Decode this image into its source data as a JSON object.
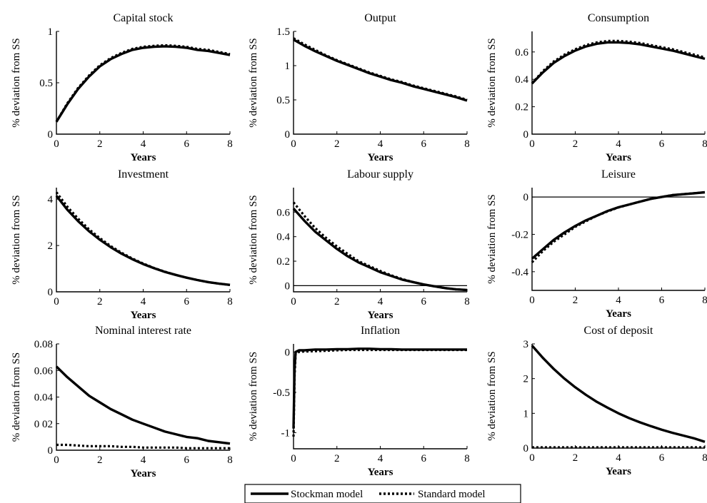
{
  "legend": {
    "entries": [
      {
        "label": "Stockman model",
        "style": "solid"
      },
      {
        "label": "Standard model",
        "style": "dotted"
      }
    ]
  },
  "chart_data": [
    {
      "type": "line",
      "title": "Capital stock",
      "xlabel": "Years",
      "ylabel": "% deviation from SS",
      "xlim": [
        0,
        8
      ],
      "ylim": [
        0,
        1
      ],
      "xticks": [
        0,
        2,
        4,
        6,
        8
      ],
      "yticks": [
        0,
        0.5,
        1
      ],
      "ytick_labels": [
        "0",
        "0.5",
        "1"
      ],
      "zero_line": false,
      "x": [
        0,
        0.5,
        1,
        1.5,
        2,
        2.5,
        3,
        3.5,
        4,
        4.5,
        5,
        5.5,
        6,
        6.5,
        7,
        7.5,
        8
      ],
      "series": [
        {
          "name": "Stockman model",
          "values": [
            0.12,
            0.29,
            0.44,
            0.56,
            0.66,
            0.73,
            0.78,
            0.82,
            0.84,
            0.85,
            0.855,
            0.85,
            0.84,
            0.82,
            0.81,
            0.79,
            0.77
          ]
        },
        {
          "name": "Standard model",
          "values": [
            0.12,
            0.3,
            0.45,
            0.57,
            0.67,
            0.74,
            0.79,
            0.83,
            0.85,
            0.86,
            0.865,
            0.86,
            0.85,
            0.83,
            0.82,
            0.8,
            0.78
          ]
        }
      ]
    },
    {
      "type": "line",
      "title": "Output",
      "xlabel": "Years",
      "ylabel": "% deviation from SS",
      "xlim": [
        0,
        8
      ],
      "ylim": [
        0,
        1.5
      ],
      "xticks": [
        0,
        2,
        4,
        6,
        8
      ],
      "yticks": [
        0,
        0.5,
        1,
        1.5
      ],
      "ytick_labels": [
        "0",
        "0.5",
        "1",
        "1.5"
      ],
      "zero_line": false,
      "x": [
        0,
        0.5,
        1,
        1.5,
        2,
        2.5,
        3,
        3.5,
        4,
        4.5,
        5,
        5.5,
        6,
        6.5,
        7,
        7.5,
        8
      ],
      "series": [
        {
          "name": "Stockman model",
          "values": [
            1.38,
            1.29,
            1.21,
            1.14,
            1.07,
            1.01,
            0.95,
            0.89,
            0.84,
            0.79,
            0.75,
            0.7,
            0.66,
            0.62,
            0.58,
            0.54,
            0.49
          ]
        },
        {
          "name": "Standard model",
          "values": [
            1.4,
            1.31,
            1.23,
            1.15,
            1.08,
            1.02,
            0.96,
            0.9,
            0.85,
            0.8,
            0.76,
            0.71,
            0.67,
            0.63,
            0.59,
            0.55,
            0.5
          ]
        }
      ]
    },
    {
      "type": "line",
      "title": "Consumption",
      "xlabel": "Years",
      "ylabel": "% deviation from SS",
      "xlim": [
        0,
        8
      ],
      "ylim": [
        0,
        0.75
      ],
      "xticks": [
        0,
        2,
        4,
        6,
        8
      ],
      "yticks": [
        0,
        0.2,
        0.4,
        0.6
      ],
      "ytick_labels": [
        "0",
        "0.2",
        "0.4",
        "0.6"
      ],
      "zero_line": false,
      "x": [
        0,
        0.5,
        1,
        1.5,
        2,
        2.5,
        3,
        3.5,
        4,
        4.5,
        5,
        5.5,
        6,
        6.5,
        7,
        7.5,
        8
      ],
      "series": [
        {
          "name": "Stockman model",
          "values": [
            0.37,
            0.45,
            0.52,
            0.57,
            0.61,
            0.64,
            0.66,
            0.67,
            0.67,
            0.665,
            0.655,
            0.64,
            0.625,
            0.61,
            0.59,
            0.57,
            0.55
          ]
        },
        {
          "name": "Standard model",
          "values": [
            0.37,
            0.46,
            0.53,
            0.58,
            0.62,
            0.65,
            0.67,
            0.68,
            0.68,
            0.675,
            0.665,
            0.65,
            0.635,
            0.62,
            0.6,
            0.58,
            0.56
          ]
        }
      ]
    },
    {
      "type": "line",
      "title": "Investment",
      "xlabel": "Years",
      "ylabel": "% deviation from SS",
      "xlim": [
        0,
        8
      ],
      "ylim": [
        0,
        4.5
      ],
      "xticks": [
        0,
        2,
        4,
        6,
        8
      ],
      "yticks": [
        0,
        2,
        4
      ],
      "ytick_labels": [
        "0",
        "2",
        "4"
      ],
      "zero_line": false,
      "x": [
        0,
        0.5,
        1,
        1.5,
        2,
        2.5,
        3,
        3.5,
        4,
        4.5,
        5,
        5.5,
        6,
        6.5,
        7,
        7.5,
        8
      ],
      "series": [
        {
          "name": "Stockman model",
          "values": [
            4.15,
            3.55,
            3.05,
            2.62,
            2.25,
            1.93,
            1.65,
            1.41,
            1.2,
            1.02,
            0.86,
            0.73,
            0.61,
            0.51,
            0.42,
            0.35,
            0.3
          ]
        },
        {
          "name": "Standard model",
          "values": [
            4.3,
            3.68,
            3.16,
            2.7,
            2.32,
            1.98,
            1.69,
            1.44,
            1.22,
            1.03,
            0.87,
            0.73,
            0.61,
            0.51,
            0.42,
            0.35,
            0.3
          ]
        }
      ]
    },
    {
      "type": "line",
      "title": "Labour supply",
      "xlabel": "Years",
      "ylabel": "% deviation from SS",
      "xlim": [
        0,
        8
      ],
      "ylim": [
        -0.05,
        0.8
      ],
      "xticks": [
        0,
        2,
        4,
        6,
        8
      ],
      "yticks": [
        0,
        0.2,
        0.4,
        0.6
      ],
      "ytick_labels": [
        "0",
        "0.2",
        "0.4",
        "0.6"
      ],
      "zero_line": true,
      "x": [
        0,
        0.5,
        1,
        1.5,
        2,
        2.5,
        3,
        3.5,
        4,
        4.5,
        5,
        5.5,
        6,
        6.5,
        7,
        7.5,
        8
      ],
      "series": [
        {
          "name": "Stockman model",
          "values": [
            0.63,
            0.53,
            0.44,
            0.37,
            0.3,
            0.24,
            0.19,
            0.15,
            0.11,
            0.08,
            0.05,
            0.03,
            0.01,
            -0.005,
            -0.02,
            -0.03,
            -0.035
          ]
        },
        {
          "name": "Standard model",
          "values": [
            0.68,
            0.57,
            0.47,
            0.39,
            0.32,
            0.26,
            0.2,
            0.16,
            0.12,
            0.085,
            0.055,
            0.03,
            0.01,
            -0.005,
            -0.02,
            -0.03,
            -0.035
          ]
        }
      ]
    },
    {
      "type": "line",
      "title": "Leisure",
      "xlabel": "Years",
      "ylabel": "% deviation from SS",
      "xlim": [
        0,
        8
      ],
      "ylim": [
        -0.5,
        0.05
      ],
      "xticks": [
        0,
        2,
        4,
        6,
        8
      ],
      "yticks": [
        -0.4,
        -0.2,
        0
      ],
      "ytick_labels": [
        "-0.4",
        "-0.2",
        "0"
      ],
      "zero_line": true,
      "x": [
        0,
        0.5,
        1,
        1.5,
        2,
        2.5,
        3,
        3.5,
        4,
        4.5,
        5,
        5.5,
        6,
        6.5,
        7,
        7.5,
        8
      ],
      "series": [
        {
          "name": "Stockman model",
          "values": [
            -0.33,
            -0.28,
            -0.23,
            -0.19,
            -0.155,
            -0.125,
            -0.1,
            -0.075,
            -0.055,
            -0.04,
            -0.025,
            -0.01,
            0.0,
            0.01,
            0.015,
            0.02,
            0.025
          ]
        },
        {
          "name": "Standard model",
          "values": [
            -0.35,
            -0.29,
            -0.24,
            -0.2,
            -0.16,
            -0.13,
            -0.1,
            -0.077,
            -0.056,
            -0.04,
            -0.025,
            -0.01,
            0.0,
            0.01,
            0.015,
            0.02,
            0.025
          ]
        }
      ]
    },
    {
      "type": "line",
      "title": "Nominal interest rate",
      "xlabel": "Years",
      "ylabel": "% deviation from SS",
      "xlim": [
        0,
        8
      ],
      "ylim": [
        0,
        0.08
      ],
      "xticks": [
        0,
        2,
        4,
        6,
        8
      ],
      "yticks": [
        0,
        0.02,
        0.04,
        0.06,
        0.08
      ],
      "ytick_labels": [
        "0",
        "0 02",
        "0.04",
        "0.06",
        "0.08"
      ],
      "zero_line": false,
      "x": [
        0,
        0.5,
        1,
        1.5,
        2,
        2.5,
        3,
        3.5,
        4,
        4.5,
        5,
        5.5,
        6,
        6.5,
        7,
        7.5,
        8
      ],
      "series": [
        {
          "name": "Stockman model",
          "values": [
            0.063,
            0.055,
            0.048,
            0.041,
            0.036,
            0.031,
            0.027,
            0.023,
            0.02,
            0.017,
            0.014,
            0.012,
            0.01,
            0.009,
            0.007,
            0.006,
            0.005
          ]
        },
        {
          "name": "Standard model",
          "values": [
            0.004,
            0.004,
            0.0035,
            0.003,
            0.003,
            0.003,
            0.0025,
            0.0025,
            0.002,
            0.002,
            0.002,
            0.002,
            0.0015,
            0.0015,
            0.0015,
            0.0015,
            0.0015
          ]
        }
      ]
    },
    {
      "type": "line",
      "title": "Inflation",
      "xlabel": "Years",
      "ylabel": "% deviation from SS",
      "xlim": [
        0,
        8
      ],
      "ylim": [
        -1.2,
        0.1
      ],
      "xticks": [
        0,
        2,
        4,
        6,
        8
      ],
      "yticks": [
        -1,
        -0.5,
        0
      ],
      "ytick_labels": [
        "-1",
        "-0.5",
        "0"
      ],
      "zero_line": false,
      "x": [
        0,
        0.05,
        0.1,
        0.25,
        0.5,
        1,
        1.5,
        2,
        2.5,
        3,
        3.5,
        4,
        4.5,
        5,
        5.5,
        6,
        6.5,
        7,
        7.5,
        8
      ],
      "series": [
        {
          "name": "Stockman model",
          "values": [
            -0.95,
            -0.2,
            0.0,
            0.02,
            0.02,
            0.03,
            0.03,
            0.035,
            0.035,
            0.04,
            0.04,
            0.035,
            0.035,
            0.03,
            0.03,
            0.03,
            0.03,
            0.03,
            0.03,
            0.03
          ]
        },
        {
          "name": "Standard model",
          "values": [
            -1.05,
            -0.3,
            -0.02,
            0.0,
            0.005,
            0.01,
            0.015,
            0.02,
            0.025,
            0.025,
            0.025,
            0.025,
            0.025,
            0.025,
            0.025,
            0.025,
            0.025,
            0.025,
            0.025,
            0.025
          ]
        }
      ]
    },
    {
      "type": "line",
      "title": "Cost of deposit",
      "xlabel": "Years",
      "ylabel": "% deviation from SS",
      "xlim": [
        0,
        8
      ],
      "ylim": [
        0,
        3
      ],
      "xticks": [
        0,
        2,
        4,
        6,
        8
      ],
      "yticks": [
        0,
        1,
        2,
        3
      ],
      "ytick_labels": [
        "0",
        "1",
        "2",
        "3"
      ],
      "zero_line": false,
      "x": [
        0,
        0.5,
        1,
        1.5,
        2,
        2.5,
        3,
        3.5,
        4,
        4.5,
        5,
        5.5,
        6,
        6.5,
        7,
        7.5,
        8
      ],
      "series": [
        {
          "name": "Stockman model",
          "values": [
            2.95,
            2.6,
            2.28,
            2.0,
            1.75,
            1.53,
            1.33,
            1.16,
            1.0,
            0.86,
            0.74,
            0.63,
            0.53,
            0.44,
            0.36,
            0.28,
            0.18
          ]
        },
        {
          "name": "Standard model",
          "values": [
            0.02,
            0.02,
            0.02,
            0.02,
            0.02,
            0.02,
            0.02,
            0.02,
            0.02,
            0.02,
            0.02,
            0.02,
            0.02,
            0.02,
            0.02,
            0.02,
            0.02
          ]
        }
      ]
    }
  ]
}
